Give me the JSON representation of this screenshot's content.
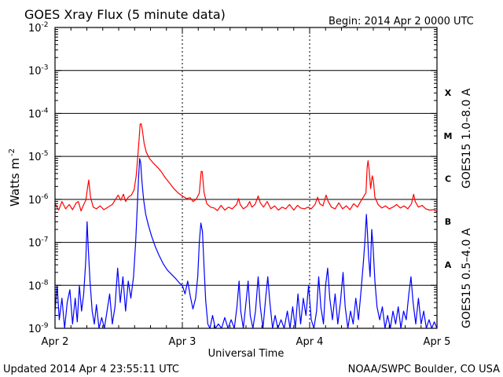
{
  "chart_data": {
    "type": "line",
    "title": "GOES Xray Flux (5 minute data)",
    "begin_label": "Begin:  2014 Apr 2 0000 UTC",
    "xlabel": "Universal Time",
    "ylabel": "Watts m",
    "ylabel_sup": "-2",
    "x_unit": "hours since begin",
    "xlim": [
      0,
      72
    ],
    "ylim": [
      1e-09,
      0.01
    ],
    "yscale": "log",
    "grid": "horizontal at decades, dotted vertical at day boundaries",
    "x_ticks": [
      {
        "x": 0,
        "label": "Apr 2"
      },
      {
        "x": 24,
        "label": "Apr 3"
      },
      {
        "x": 48,
        "label": "Apr 4"
      },
      {
        "x": 72,
        "label": "Apr 5"
      }
    ],
    "y_ticks": [
      {
        "exp": -2,
        "base": "10",
        "sup": "-2"
      },
      {
        "exp": -3,
        "base": "10",
        "sup": "-3"
      },
      {
        "exp": -4,
        "base": "10",
        "sup": "-4"
      },
      {
        "exp": -5,
        "base": "10",
        "sup": "-5"
      },
      {
        "exp": -6,
        "base": "10",
        "sup": "-6"
      },
      {
        "exp": -7,
        "base": "10",
        "sup": "-7"
      },
      {
        "exp": -8,
        "base": "10",
        "sup": "-8"
      },
      {
        "exp": -9,
        "base": "10",
        "sup": "-9"
      }
    ],
    "flare_classes": [
      {
        "label": "X",
        "exp": -3.5
      },
      {
        "label": "M",
        "exp": -4.5
      },
      {
        "label": "C",
        "exp": -5.5
      },
      {
        "label": "B",
        "exp": -6.5
      },
      {
        "label": "A",
        "exp": -7.5
      }
    ],
    "series": [
      {
        "name": "GOES15 1.0–8.0 A",
        "color": "#ff0000",
        "points": [
          [
            0,
            -6.1
          ],
          [
            0.7,
            -6.25
          ],
          [
            1.3,
            -6.05
          ],
          [
            2,
            -6.22
          ],
          [
            2.7,
            -6.12
          ],
          [
            3.3,
            -6.24
          ],
          [
            4,
            -6.08
          ],
          [
            4.4,
            -6.05
          ],
          [
            4.9,
            -6.27
          ],
          [
            5.4,
            -6.12
          ],
          [
            5.8,
            -6.02
          ],
          [
            6.1,
            -5.75
          ],
          [
            6.35,
            -5.55
          ],
          [
            6.7,
            -5.95
          ],
          [
            7.2,
            -6.18
          ],
          [
            7.8,
            -6.22
          ],
          [
            8.5,
            -6.15
          ],
          [
            9.2,
            -6.24
          ],
          [
            10,
            -6.18
          ],
          [
            10.8,
            -6.12
          ],
          [
            11.4,
            -6.0
          ],
          [
            11.9,
            -5.9
          ],
          [
            12.4,
            -6.02
          ],
          [
            12.9,
            -5.88
          ],
          [
            13.3,
            -6.05
          ],
          [
            13.8,
            -5.95
          ],
          [
            14.4,
            -5.9
          ],
          [
            14.9,
            -5.78
          ],
          [
            15.3,
            -5.45
          ],
          [
            15.6,
            -5.0
          ],
          [
            15.85,
            -4.6
          ],
          [
            16.05,
            -4.25
          ],
          [
            16.25,
            -4.24
          ],
          [
            16.5,
            -4.42
          ],
          [
            16.8,
            -4.7
          ],
          [
            17.2,
            -4.9
          ],
          [
            17.8,
            -5.05
          ],
          [
            18.5,
            -5.15
          ],
          [
            19.3,
            -5.25
          ],
          [
            20,
            -5.35
          ],
          [
            20.8,
            -5.5
          ],
          [
            21.6,
            -5.62
          ],
          [
            22.4,
            -5.75
          ],
          [
            23.2,
            -5.85
          ],
          [
            24,
            -5.92
          ],
          [
            24.8,
            -5.98
          ],
          [
            25.5,
            -5.96
          ],
          [
            26,
            -6.05
          ],
          [
            26.6,
            -6.0
          ],
          [
            27.2,
            -5.85
          ],
          [
            27.55,
            -5.35
          ],
          [
            27.75,
            -5.35
          ],
          [
            28.1,
            -5.85
          ],
          [
            28.6,
            -6.1
          ],
          [
            29.3,
            -6.18
          ],
          [
            30,
            -6.2
          ],
          [
            30.6,
            -6.26
          ],
          [
            31.3,
            -6.14
          ],
          [
            32,
            -6.25
          ],
          [
            32.7,
            -6.18
          ],
          [
            33.4,
            -6.22
          ],
          [
            34.2,
            -6.12
          ],
          [
            34.6,
            -5.98
          ],
          [
            34.9,
            -6.12
          ],
          [
            35.5,
            -6.22
          ],
          [
            36.2,
            -6.16
          ],
          [
            36.7,
            -6.05
          ],
          [
            37.1,
            -6.18
          ],
          [
            37.7,
            -6.12
          ],
          [
            38.3,
            -5.92
          ],
          [
            38.7,
            -6.08
          ],
          [
            39.3,
            -6.18
          ],
          [
            40,
            -6.05
          ],
          [
            40.7,
            -6.22
          ],
          [
            41.4,
            -6.15
          ],
          [
            42.1,
            -6.25
          ],
          [
            42.8,
            -6.18
          ],
          [
            43.5,
            -6.22
          ],
          [
            44.2,
            -6.12
          ],
          [
            45,
            -6.25
          ],
          [
            45.7,
            -6.14
          ],
          [
            46.3,
            -6.2
          ],
          [
            47,
            -6.22
          ],
          [
            47.7,
            -6.18
          ],
          [
            48.3,
            -6.22
          ],
          [
            49,
            -6.12
          ],
          [
            49.5,
            -5.95
          ],
          [
            49.9,
            -6.1
          ],
          [
            50.5,
            -6.15
          ],
          [
            51.1,
            -5.9
          ],
          [
            51.5,
            -6.05
          ],
          [
            52.1,
            -6.18
          ],
          [
            52.8,
            -6.22
          ],
          [
            53.5,
            -6.08
          ],
          [
            54.2,
            -6.22
          ],
          [
            54.9,
            -6.15
          ],
          [
            55.6,
            -6.24
          ],
          [
            56.3,
            -6.1
          ],
          [
            57,
            -6.18
          ],
          [
            57.6,
            -6.05
          ],
          [
            58.1,
            -5.95
          ],
          [
            58.6,
            -5.85
          ],
          [
            58.85,
            -5.25
          ],
          [
            59.0,
            -5.1
          ],
          [
            59.2,
            -5.3
          ],
          [
            59.5,
            -5.75
          ],
          [
            59.8,
            -5.45
          ],
          [
            60.0,
            -5.55
          ],
          [
            60.3,
            -5.95
          ],
          [
            60.9,
            -6.12
          ],
          [
            61.6,
            -6.2
          ],
          [
            62.3,
            -6.15
          ],
          [
            63,
            -6.22
          ],
          [
            63.7,
            -6.18
          ],
          [
            64.4,
            -6.12
          ],
          [
            65.1,
            -6.2
          ],
          [
            65.8,
            -6.15
          ],
          [
            66.5,
            -6.22
          ],
          [
            67.2,
            -6.1
          ],
          [
            67.6,
            -5.88
          ],
          [
            67.9,
            -6.05
          ],
          [
            68.5,
            -6.18
          ],
          [
            69.2,
            -6.14
          ],
          [
            69.9,
            -6.22
          ],
          [
            70.6,
            -6.25
          ],
          [
            71.3,
            -6.24
          ],
          [
            72,
            -6.28
          ]
        ]
      },
      {
        "name": "GOES15 0.5–4.0 A",
        "color": "#0000ff",
        "points": [
          [
            0,
            -8.6
          ],
          [
            0.4,
            -8.0
          ],
          [
            0.8,
            -8.8
          ],
          [
            1.3,
            -8.3
          ],
          [
            1.8,
            -9.0
          ],
          [
            2.3,
            -8.4
          ],
          [
            2.8,
            -8.1
          ],
          [
            3.3,
            -8.9
          ],
          [
            3.8,
            -8.3
          ],
          [
            4.2,
            -8.85
          ],
          [
            4.6,
            -8.0
          ],
          [
            5.0,
            -8.6
          ],
          [
            5.4,
            -8.2
          ],
          [
            5.8,
            -7.4
          ],
          [
            6.05,
            -6.52
          ],
          [
            6.3,
            -7.2
          ],
          [
            6.6,
            -7.9
          ],
          [
            7.0,
            -8.6
          ],
          [
            7.4,
            -8.9
          ],
          [
            7.8,
            -8.45
          ],
          [
            8.3,
            -9.0
          ],
          [
            8.8,
            -8.75
          ],
          [
            9.3,
            -9.0
          ],
          [
            9.8,
            -8.6
          ],
          [
            10.3,
            -8.2
          ],
          [
            10.8,
            -8.9
          ],
          [
            11.3,
            -8.5
          ],
          [
            11.8,
            -7.6
          ],
          [
            12.3,
            -8.4
          ],
          [
            12.8,
            -7.8
          ],
          [
            13.3,
            -8.6
          ],
          [
            13.8,
            -7.9
          ],
          [
            14.3,
            -8.3
          ],
          [
            14.8,
            -7.8
          ],
          [
            15.2,
            -7.0
          ],
          [
            15.5,
            -6.2
          ],
          [
            15.75,
            -5.5
          ],
          [
            15.95,
            -5.05
          ],
          [
            16.15,
            -5.15
          ],
          [
            16.4,
            -5.6
          ],
          [
            16.7,
            -6.0
          ],
          [
            17.1,
            -6.35
          ],
          [
            17.6,
            -6.6
          ],
          [
            18.2,
            -6.85
          ],
          [
            18.9,
            -7.1
          ],
          [
            19.6,
            -7.3
          ],
          [
            20.4,
            -7.5
          ],
          [
            21.2,
            -7.65
          ],
          [
            22.0,
            -7.75
          ],
          [
            22.8,
            -7.85
          ],
          [
            23.5,
            -7.95
          ],
          [
            24.0,
            -8.0
          ],
          [
            24.5,
            -8.2
          ],
          [
            25.0,
            -7.9
          ],
          [
            25.5,
            -8.25
          ],
          [
            26.0,
            -8.55
          ],
          [
            26.5,
            -8.3
          ],
          [
            26.9,
            -7.8
          ],
          [
            27.2,
            -7.0
          ],
          [
            27.5,
            -6.55
          ],
          [
            27.8,
            -6.75
          ],
          [
            28.1,
            -7.6
          ],
          [
            28.4,
            -8.35
          ],
          [
            28.8,
            -8.9
          ],
          [
            29.2,
            -9.0
          ],
          [
            29.7,
            -8.7
          ],
          [
            30.2,
            -9.0
          ],
          [
            30.8,
            -8.9
          ],
          [
            31.4,
            -9.0
          ],
          [
            32.0,
            -8.75
          ],
          [
            32.6,
            -9.0
          ],
          [
            33.2,
            -8.8
          ],
          [
            33.8,
            -9.0
          ],
          [
            34.3,
            -8.5
          ],
          [
            34.7,
            -7.9
          ],
          [
            35.0,
            -8.6
          ],
          [
            35.5,
            -9.0
          ],
          [
            36.0,
            -8.4
          ],
          [
            36.4,
            -7.9
          ],
          [
            36.8,
            -8.7
          ],
          [
            37.3,
            -9.0
          ],
          [
            37.8,
            -8.6
          ],
          [
            38.3,
            -7.8
          ],
          [
            38.7,
            -8.5
          ],
          [
            39.2,
            -9.0
          ],
          [
            39.7,
            -8.3
          ],
          [
            40.1,
            -7.8
          ],
          [
            40.5,
            -8.4
          ],
          [
            41.0,
            -9.0
          ],
          [
            41.5,
            -8.7
          ],
          [
            42.0,
            -9.0
          ],
          [
            42.6,
            -8.8
          ],
          [
            43.2,
            -9.0
          ],
          [
            43.8,
            -8.6
          ],
          [
            44.3,
            -9.0
          ],
          [
            44.8,
            -8.5
          ],
          [
            45.3,
            -9.0
          ],
          [
            45.8,
            -8.2
          ],
          [
            46.3,
            -8.9
          ],
          [
            46.8,
            -8.3
          ],
          [
            47.3,
            -8.7
          ],
          [
            47.8,
            -8.0
          ],
          [
            48.3,
            -8.8
          ],
          [
            48.8,
            -9.0
          ],
          [
            49.3,
            -8.6
          ],
          [
            49.7,
            -7.8
          ],
          [
            50.1,
            -8.5
          ],
          [
            50.6,
            -8.9
          ],
          [
            51.0,
            -8.0
          ],
          [
            51.4,
            -7.6
          ],
          [
            51.8,
            -8.3
          ],
          [
            52.3,
            -8.8
          ],
          [
            52.8,
            -8.2
          ],
          [
            53.3,
            -8.9
          ],
          [
            53.8,
            -8.4
          ],
          [
            54.3,
            -7.7
          ],
          [
            54.7,
            -8.5
          ],
          [
            55.2,
            -9.0
          ],
          [
            55.7,
            -8.6
          ],
          [
            56.2,
            -8.9
          ],
          [
            56.7,
            -8.3
          ],
          [
            57.2,
            -8.8
          ],
          [
            57.7,
            -8.1
          ],
          [
            58.1,
            -7.5
          ],
          [
            58.4,
            -7.0
          ],
          [
            58.7,
            -6.35
          ],
          [
            58.9,
            -6.8
          ],
          [
            59.1,
            -7.3
          ],
          [
            59.4,
            -7.8
          ],
          [
            59.7,
            -6.7
          ],
          [
            59.95,
            -7.1
          ],
          [
            60.3,
            -7.9
          ],
          [
            60.7,
            -8.5
          ],
          [
            61.2,
            -8.8
          ],
          [
            61.7,
            -8.5
          ],
          [
            62.2,
            -9.0
          ],
          [
            62.7,
            -8.7
          ],
          [
            63.2,
            -9.0
          ],
          [
            63.7,
            -8.6
          ],
          [
            64.2,
            -8.9
          ],
          [
            64.7,
            -8.5
          ],
          [
            65.2,
            -9.0
          ],
          [
            65.7,
            -8.6
          ],
          [
            66.2,
            -8.8
          ],
          [
            66.7,
            -8.2
          ],
          [
            67.1,
            -7.8
          ],
          [
            67.5,
            -8.4
          ],
          [
            68.0,
            -8.9
          ],
          [
            68.5,
            -8.3
          ],
          [
            69.0,
            -8.9
          ],
          [
            69.5,
            -8.6
          ],
          [
            70.0,
            -9.0
          ],
          [
            70.5,
            -8.8
          ],
          [
            71.0,
            -9.0
          ],
          [
            71.5,
            -8.85
          ],
          [
            72,
            -9.0
          ]
        ]
      }
    ]
  },
  "footer": {
    "updated": "Updated 2014 Apr  4 23:55:11 UTC",
    "credit": "NOAA/SWPC Boulder, CO USA"
  }
}
